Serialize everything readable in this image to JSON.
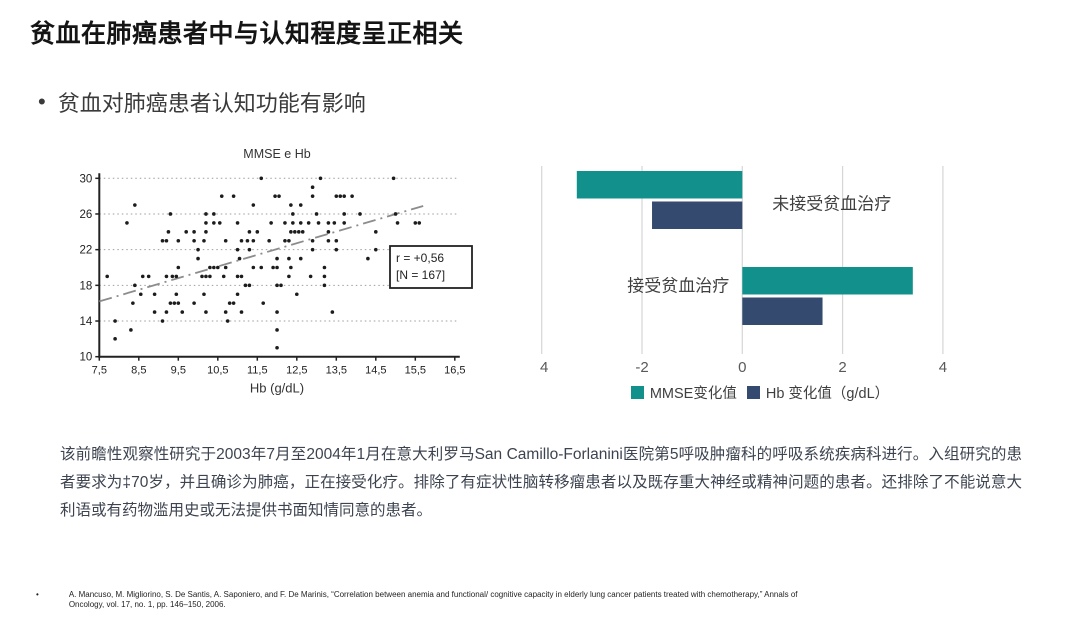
{
  "slide": {
    "title": "贫血在肺癌患者中与认知程度呈正相关",
    "bullet_marker": "•",
    "bullet": "贫血对肺癌患者认知功能有影响",
    "paragraph": "该前瞻性观察性研究于2003年7月至2004年1月在意大利罗马San Camillo-Forlanini医院第5呼吸肿瘤科的呼吸系统疾病科进行。入组研究的患者要求为‡70岁，并且确诊为肺癌，正在接受化疗。排除了有症状性脑转移瘤患者以及既存重大神经或精神问题的患者。还排除了不能说意大利语或有药物滥用史或无法提供书面知情同意的患者。",
    "citation_bullet": "•",
    "citation_line1": "A. Mancuso, M. Migliorino, S. De Santis, A. Saponiero, and F. De Marinis,  “Correlation between anemia and functional/ cognitive capacity in elderly lung cancer patients treated with chemotherapy,”  Annals of",
    "citation_line2": "Oncology, vol. 17, no. 1, pp. 146–150, 2006."
  },
  "colors": {
    "teal": "#12918C",
    "navy": "#344A6E",
    "dot": "#1c1c1c",
    "trend": "#8c8c8c",
    "grid_bar": "#d6d6d6",
    "grid_scatter": "#9e9e9e",
    "axis": "#222222",
    "label_gray": "#3f3f3f",
    "tick_gray": "#595959"
  },
  "chart_data": [
    {
      "type": "scatter",
      "title": "MMSE e Hb",
      "xlabel": "Hb (g/dL)",
      "ylabel": "",
      "xlim": [
        7.5,
        16.5
      ],
      "ylim": [
        10,
        30
      ],
      "x_tick_values": [
        7.5,
        8.5,
        9.5,
        10.5,
        11.5,
        12.5,
        13.5,
        14.5,
        15.5,
        16.5
      ],
      "x_tick_labels": [
        "7,5",
        "8,5",
        "9,5",
        "10,5",
        "11,5",
        "12,5",
        "13,5",
        "14,5",
        "15,5",
        "16,5"
      ],
      "y_tick_values": [
        10,
        14,
        18,
        22,
        26,
        30
      ],
      "grid": "horizontal-dotted",
      "annotation_lines": [
        "r = +0,56",
        "[N = 167]"
      ],
      "trendline": {
        "x1": 7.5,
        "y1": 16.2,
        "x2": 15.7,
        "y2": 26.9,
        "style": "dash-dot"
      },
      "points": [
        [
          11.6,
          30
        ],
        [
          13.1,
          30
        ],
        [
          14.95,
          30
        ],
        [
          12.9,
          29
        ],
        [
          10.6,
          28
        ],
        [
          10.9,
          28
        ],
        [
          11.95,
          28
        ],
        [
          12.05,
          28
        ],
        [
          12.9,
          28
        ],
        [
          13.5,
          28
        ],
        [
          13.6,
          28
        ],
        [
          13.7,
          28
        ],
        [
          13.9,
          28
        ],
        [
          8.4,
          27
        ],
        [
          11.4,
          27
        ],
        [
          12.35,
          27
        ],
        [
          12.6,
          27
        ],
        [
          9.3,
          26
        ],
        [
          10.2,
          26
        ],
        [
          10.4,
          26
        ],
        [
          12.4,
          26
        ],
        [
          13.0,
          26
        ],
        [
          13.7,
          26
        ],
        [
          14.1,
          26
        ],
        [
          15.0,
          26
        ],
        [
          8.2,
          25
        ],
        [
          10.2,
          25
        ],
        [
          10.4,
          25
        ],
        [
          10.55,
          25
        ],
        [
          11.0,
          25
        ],
        [
          11.85,
          25
        ],
        [
          12.2,
          25
        ],
        [
          12.4,
          25
        ],
        [
          12.6,
          25
        ],
        [
          12.8,
          25
        ],
        [
          13.05,
          25
        ],
        [
          13.3,
          25
        ],
        [
          13.45,
          25
        ],
        [
          13.7,
          25
        ],
        [
          15.05,
          25
        ],
        [
          15.5,
          25
        ],
        [
          15.6,
          25
        ],
        [
          9.25,
          24
        ],
        [
          9.7,
          24
        ],
        [
          9.9,
          24
        ],
        [
          10.2,
          24
        ],
        [
          11.3,
          24
        ],
        [
          11.5,
          24
        ],
        [
          12.35,
          24
        ],
        [
          12.45,
          24
        ],
        [
          12.55,
          24
        ],
        [
          12.65,
          24
        ],
        [
          13.3,
          24
        ],
        [
          14.5,
          24
        ],
        [
          9.1,
          23
        ],
        [
          9.2,
          23
        ],
        [
          9.5,
          23
        ],
        [
          9.9,
          23
        ],
        [
          10.15,
          23
        ],
        [
          10.7,
          23
        ],
        [
          11.1,
          23
        ],
        [
          11.25,
          23
        ],
        [
          11.4,
          23
        ],
        [
          11.8,
          23
        ],
        [
          12.2,
          23
        ],
        [
          12.3,
          23
        ],
        [
          12.9,
          23
        ],
        [
          13.3,
          23
        ],
        [
          13.5,
          23
        ],
        [
          10.0,
          22
        ],
        [
          11.0,
          22
        ],
        [
          11.3,
          22
        ],
        [
          12.9,
          22
        ],
        [
          13.5,
          22
        ],
        [
          14.5,
          22
        ],
        [
          10.0,
          21
        ],
        [
          11.05,
          21
        ],
        [
          12.0,
          21
        ],
        [
          12.3,
          21
        ],
        [
          12.6,
          21
        ],
        [
          14.3,
          21
        ],
        [
          9.5,
          20
        ],
        [
          10.3,
          20
        ],
        [
          10.4,
          20
        ],
        [
          10.5,
          20
        ],
        [
          10.7,
          20
        ],
        [
          11.4,
          20
        ],
        [
          11.6,
          20
        ],
        [
          11.9,
          20
        ],
        [
          12.0,
          20
        ],
        [
          12.35,
          20
        ],
        [
          13.2,
          20
        ],
        [
          7.7,
          19
        ],
        [
          8.6,
          19
        ],
        [
          8.75,
          19
        ],
        [
          9.2,
          19
        ],
        [
          9.35,
          19
        ],
        [
          9.45,
          19
        ],
        [
          10.1,
          19
        ],
        [
          10.2,
          19
        ],
        [
          10.3,
          19
        ],
        [
          10.65,
          19
        ],
        [
          11.0,
          19
        ],
        [
          11.1,
          19
        ],
        [
          12.3,
          19
        ],
        [
          12.85,
          19
        ],
        [
          13.2,
          19
        ],
        [
          8.4,
          18
        ],
        [
          11.2,
          18
        ],
        [
          11.3,
          18
        ],
        [
          12.0,
          18
        ],
        [
          12.1,
          18
        ],
        [
          13.2,
          18
        ],
        [
          8.55,
          17
        ],
        [
          8.9,
          17
        ],
        [
          9.45,
          17
        ],
        [
          10.15,
          17
        ],
        [
          11.0,
          17
        ],
        [
          12.5,
          17
        ],
        [
          8.35,
          16
        ],
        [
          9.3,
          16
        ],
        [
          9.4,
          16
        ],
        [
          9.5,
          16
        ],
        [
          9.9,
          16
        ],
        [
          10.8,
          16
        ],
        [
          10.9,
          16
        ],
        [
          11.65,
          16
        ],
        [
          8.9,
          15
        ],
        [
          9.2,
          15
        ],
        [
          9.6,
          15
        ],
        [
          10.2,
          15
        ],
        [
          10.7,
          15
        ],
        [
          11.1,
          15
        ],
        [
          12.0,
          15
        ],
        [
          13.4,
          15
        ],
        [
          7.9,
          14
        ],
        [
          9.1,
          14
        ],
        [
          10.75,
          14
        ],
        [
          8.3,
          13
        ],
        [
          12.0,
          13
        ],
        [
          7.9,
          12
        ],
        [
          12.0,
          11
        ]
      ]
    },
    {
      "type": "bar",
      "orientation": "horizontal",
      "categories": [
        "未接受贫血治疗",
        "接受贫血治疗"
      ],
      "series": [
        {
          "name": "MMSE变化值",
          "values": [
            -3.3,
            3.4
          ],
          "color": "#12918C"
        },
        {
          "name": "Hb 变化值（g/dL）",
          "values": [
            -1.8,
            1.6
          ],
          "color": "#344A6E"
        }
      ],
      "xlim": [
        -4,
        5.4
      ],
      "x_ticks": [
        -4,
        -2,
        0,
        2,
        4
      ],
      "grid": "vertical",
      "legend_position": "bottom"
    }
  ]
}
